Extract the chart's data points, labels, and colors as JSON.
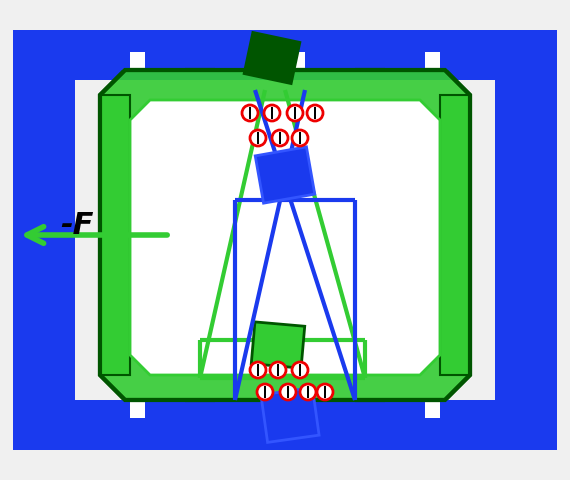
{
  "fig_width": 5.7,
  "fig_height": 4.8,
  "dpi": 100,
  "bg_color": "#f0f0f0",
  "blue": "#1a3aee",
  "blue2": "#3355ff",
  "green": "#22aa22",
  "green2": "#33cc33",
  "green_dark": "#005500",
  "green_fill": "#44bb44",
  "red": "#ee0000",
  "black": "#000000",
  "white": "#ffffff"
}
